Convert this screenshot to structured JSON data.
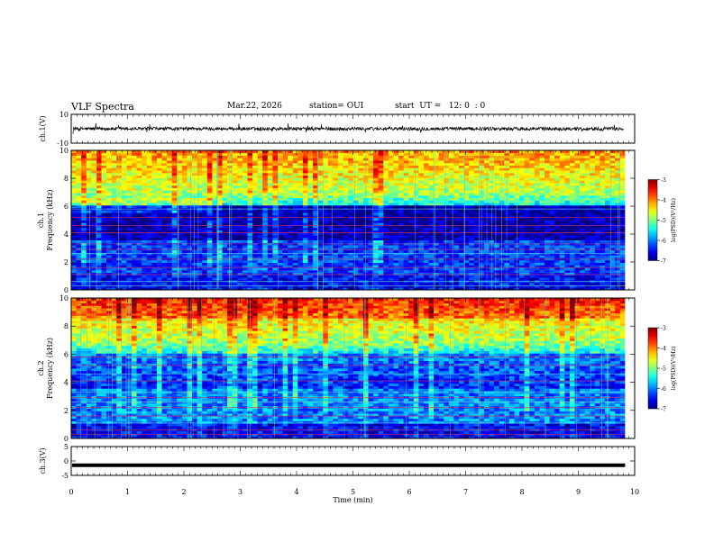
{
  "header": {
    "title": "VLF Spectra",
    "date": "Mar.22, 2026",
    "station": "station= OUI",
    "start": "start  UT =   12: 0  : 0"
  },
  "chart_data": [
    {
      "type": "line",
      "ylabel": "ch.1(V)",
      "ylim": [
        -10,
        10
      ],
      "yticks": [
        "10",
        "-10"
      ],
      "series": [
        {
          "values_description_free": true,
          "mean": 0,
          "amplitude_typ": 1.5
        }
      ]
    },
    {
      "type": "heatmap",
      "ylabel_line1": "ch.1",
      "ylabel_line2": "Frequency (kHz)",
      "ylim": [
        0,
        10
      ],
      "yticks": [
        "0",
        "2",
        "4",
        "6",
        "8",
        "10"
      ],
      "colorbar": {
        "label": "log(PSD)(V²/Hz)",
        "range": [
          -7,
          -3
        ],
        "ticks": [
          "-3",
          "-4",
          "-5",
          "-6",
          "-7"
        ]
      }
    },
    {
      "type": "heatmap",
      "ylabel_line1": "ch.2",
      "ylabel_line2": "Frequency (kHz)",
      "ylim": [
        0,
        10
      ],
      "yticks": [
        "0",
        "2",
        "4",
        "6",
        "8",
        "10"
      ],
      "colorbar": {
        "label": "log(PSD)(V²/Hz)",
        "range": [
          -7,
          -3
        ],
        "ticks": [
          "-3",
          "-4",
          "-5",
          "-6",
          "-7"
        ]
      }
    },
    {
      "type": "line",
      "ylabel": "ch.3(V)",
      "ylim": [
        -5,
        5
      ],
      "yticks": [
        "5",
        "0",
        "-5"
      ],
      "series": [
        {
          "constant": -1.5
        }
      ]
    }
  ],
  "xaxis": {
    "label": "Time (min)",
    "range": [
      0,
      10
    ],
    "ticks": [
      "0",
      "1",
      "2",
      "3",
      "4",
      "5",
      "6",
      "7",
      "8",
      "9",
      "10"
    ],
    "data_end": 9.83
  }
}
